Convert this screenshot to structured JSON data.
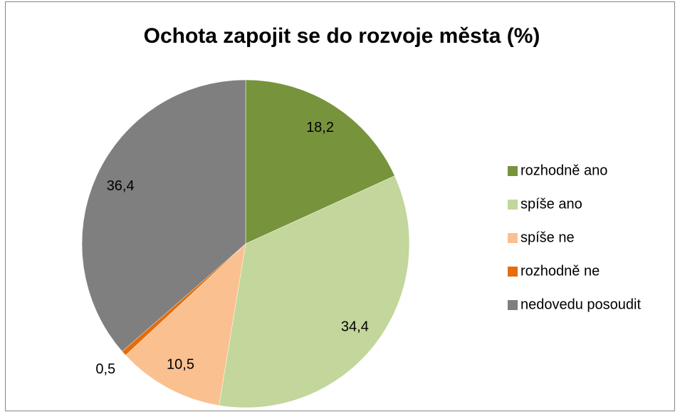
{
  "chart_data": {
    "type": "pie",
    "title": "Ochota zapojit se do rozvoje města (%)",
    "categories": [
      "rozhodně ano",
      "spíše ano",
      "spíše ne",
      "rozhodně ne",
      "nedovedu posoudit"
    ],
    "values": [
      18.2,
      34.4,
      10.5,
      0.5,
      36.4
    ],
    "value_labels": [
      "18,2",
      "34,4",
      "10,5",
      "0,5",
      "36,4"
    ],
    "colors": [
      "#77933c",
      "#c3d69b",
      "#fac090",
      "#e46c0a",
      "#7f7f7f"
    ],
    "legend": "right"
  }
}
